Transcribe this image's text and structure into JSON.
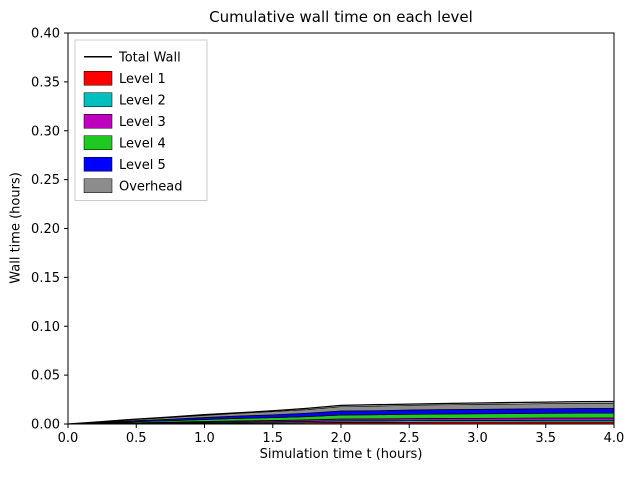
{
  "chart_data": {
    "type": "area",
    "title": "Cumulative wall time on each level",
    "xlabel": "Simulation time t (hours)",
    "ylabel": "Wall time (hours)",
    "xlim": [
      0.0,
      4.0
    ],
    "ylim": [
      0.0,
      0.4
    ],
    "x_ticks": [
      0.0,
      0.5,
      1.0,
      1.5,
      2.0,
      2.5,
      3.0,
      3.5,
      4.0
    ],
    "y_ticks": [
      0.0,
      0.05,
      0.1,
      0.15,
      0.2,
      0.25,
      0.3,
      0.35,
      0.4
    ],
    "grid": false,
    "legend_position": "upper-left",
    "x": [
      0.0,
      0.25,
      0.5,
      0.75,
      1.0,
      1.25,
      1.5,
      1.75,
      2.0,
      2.25,
      2.5,
      2.75,
      3.0,
      3.25,
      3.5,
      3.75,
      4.0
    ],
    "stack_series": [
      {
        "name": "Level 1",
        "color": "#ff0000",
        "values": [
          0,
          0.0002,
          0.0004,
          0.0006,
          0.0008,
          0.001,
          0.0011,
          0.0013,
          0.0016,
          0.0016,
          0.0017,
          0.0018,
          0.0018,
          0.0018,
          0.0019,
          0.0019,
          0.0019
        ]
      },
      {
        "name": "Level 2",
        "color": "#00bfbf",
        "values": [
          0,
          0.0002,
          0.0004,
          0.0006,
          0.0008,
          0.001,
          0.0011,
          0.0013,
          0.0016,
          0.0016,
          0.0017,
          0.0018,
          0.0018,
          0.0018,
          0.0019,
          0.0019,
          0.0019
        ]
      },
      {
        "name": "Level 3",
        "color": "#bf00bf",
        "values": [
          0,
          0.0003,
          0.0005,
          0.0007,
          0.001,
          0.0012,
          0.0014,
          0.0016,
          0.0019,
          0.002,
          0.0021,
          0.0021,
          0.0022,
          0.0023,
          0.0023,
          0.0023,
          0.0024
        ]
      },
      {
        "name": "Level 4",
        "color": "#1fc91f",
        "values": [
          0,
          0.0005,
          0.0011,
          0.0015,
          0.002,
          0.0025,
          0.0029,
          0.0034,
          0.0041,
          0.0042,
          0.0044,
          0.0045,
          0.0046,
          0.0047,
          0.0048,
          0.0049,
          0.0049
        ]
      },
      {
        "name": "Level 5",
        "color": "#0000ff",
        "values": [
          0,
          0.0005,
          0.0011,
          0.0015,
          0.002,
          0.0025,
          0.0029,
          0.0034,
          0.0041,
          0.0042,
          0.0044,
          0.0045,
          0.0046,
          0.0047,
          0.0048,
          0.0049,
          0.0049
        ]
      },
      {
        "name": "Overhead",
        "color": "#8c8c8c",
        "values": [
          0,
          0.0006,
          0.0012,
          0.0017,
          0.0022,
          0.0027,
          0.0032,
          0.0037,
          0.0044,
          0.0046,
          0.0048,
          0.0049,
          0.005,
          0.0051,
          0.0052,
          0.0053,
          0.0054
        ]
      }
    ],
    "line_series": {
      "name": "Total Wall",
      "color": "#000000",
      "values": [
        0,
        0.0025,
        0.005,
        0.0072,
        0.0095,
        0.0115,
        0.0135,
        0.016,
        0.019,
        0.0197,
        0.0204,
        0.021,
        0.0215,
        0.022,
        0.0224,
        0.0228,
        0.023
      ]
    },
    "legend_entries": [
      "Total Wall",
      "Level 1",
      "Level 2",
      "Level 3",
      "Level 4",
      "Level 5",
      "Overhead"
    ]
  }
}
